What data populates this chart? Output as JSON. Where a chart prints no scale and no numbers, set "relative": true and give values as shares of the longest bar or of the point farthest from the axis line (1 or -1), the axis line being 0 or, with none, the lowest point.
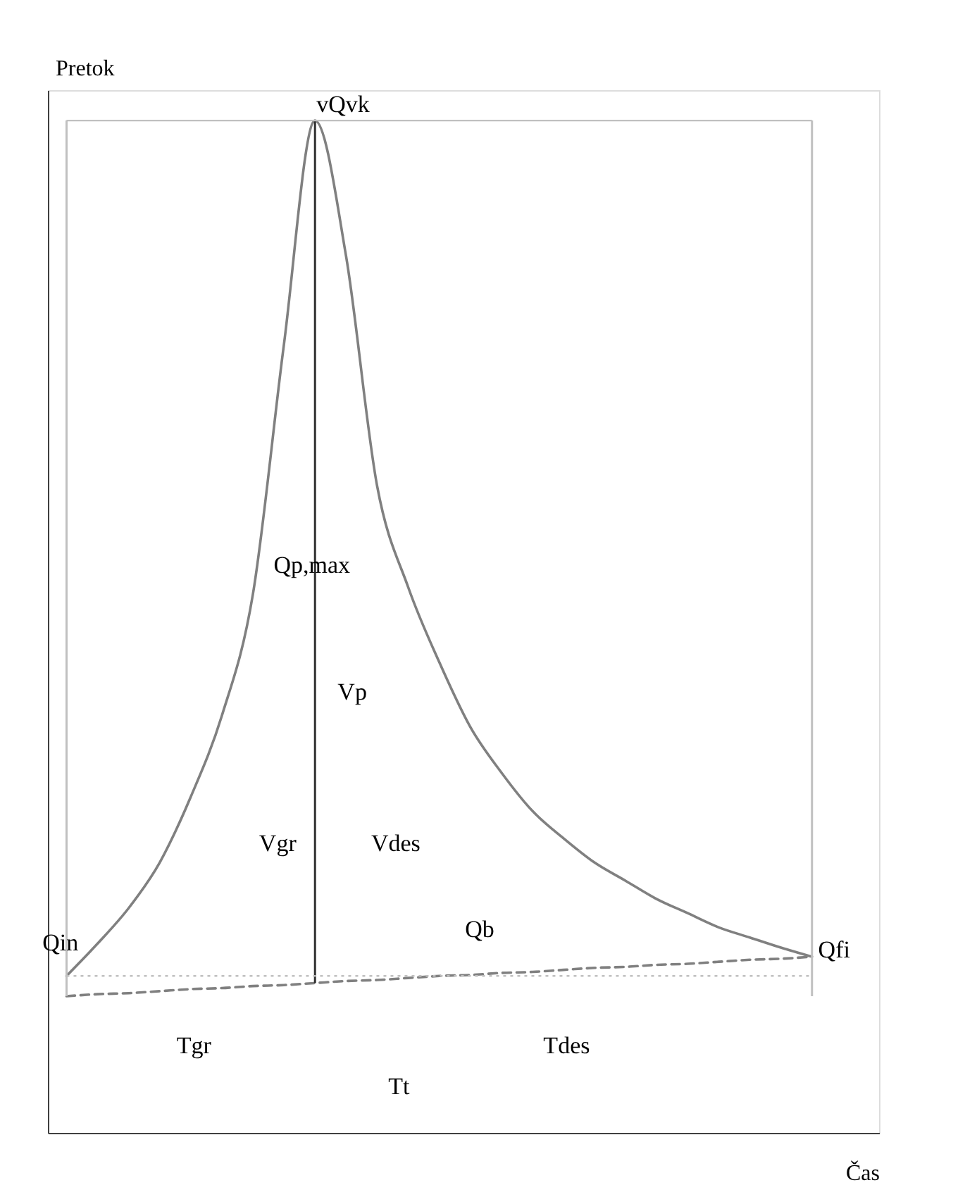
{
  "chart_data": {
    "type": "line",
    "relative": true,
    "xlabel": "Čas",
    "ylabel": "Pretok",
    "tick_labels": false,
    "grid": false,
    "categories": [
      null,
      null,
      null,
      null,
      null,
      null,
      null,
      null,
      null,
      null,
      null,
      null,
      null,
      null,
      null,
      null,
      null,
      null,
      null,
      null,
      null,
      null,
      null,
      null,
      null
    ],
    "series": [
      {
        "color": "#808080",
        "line_style": "solid",
        "values": [
          0.155,
          0.187,
          0.222,
          0.267,
          0.332,
          0.412,
          0.532,
          0.779,
          1,
          0.866,
          0.639,
          0.539,
          0.465,
          0.401,
          0.356,
          0.318,
          0.291,
          0.267,
          0.249,
          0.231,
          0.217,
          0.203,
          0.193,
          0.183,
          0.174
        ]
      },
      {
        "color": "#808080",
        "line_style": "dashed",
        "values": [
          0.135,
          0.137,
          0.138,
          0.14,
          0.142,
          0.143,
          0.145,
          0.146,
          0.148,
          0.15,
          0.151,
          0.153,
          0.155,
          0.156,
          0.158,
          0.159,
          0.161,
          0.163,
          0.164,
          0.166,
          0.167,
          0.169,
          0.171,
          0.172,
          0.174
        ]
      }
    ],
    "ref_lines": [
      {
        "axis": "y",
        "value": 1,
        "color": "#c0c0c0",
        "line_style": "solid"
      },
      {
        "axis": "y",
        "value": 0.155,
        "color": "#c0c0c0",
        "line_style": "dotted"
      }
    ],
    "annotations": [
      "vQvk",
      "Qp,max",
      "Vp",
      "Vgr",
      "Vdes",
      "Qb",
      "Qin",
      "Qfi",
      "Tgr",
      "Tdes",
      "Tt"
    ]
  }
}
